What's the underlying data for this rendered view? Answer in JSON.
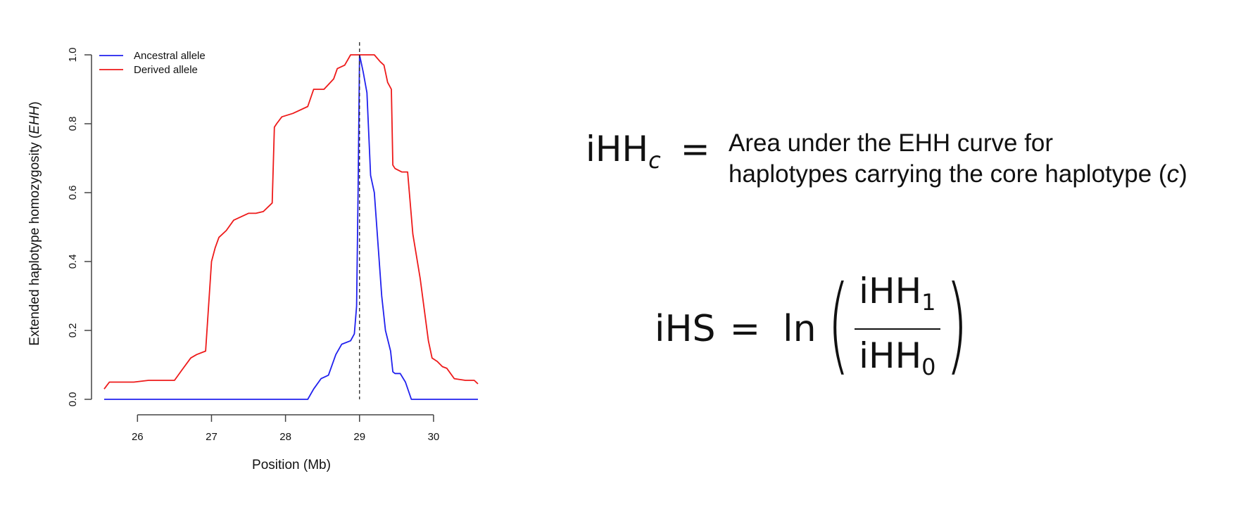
{
  "chart_data": {
    "type": "line",
    "xlabel": "Position (Mb)",
    "ylabel_prefix": "Extended haplotype homozygosity (",
    "ylabel_italic": "EHH",
    "ylabel_suffix": ")",
    "xlim": [
      25.55,
      30.6
    ],
    "ylim": [
      0,
      1
    ],
    "xticks": [
      26,
      27,
      28,
      29,
      30
    ],
    "xtick_labels": [
      "26",
      "27",
      "28",
      "29",
      "30"
    ],
    "yticks": [
      0,
      0.2,
      0.4,
      0.6,
      0.8,
      1.0
    ],
    "ytick_labels": [
      "0.0",
      "0.2",
      "0.4",
      "0.6",
      "0.8",
      "1.0"
    ],
    "vline_x": 29.0,
    "grid": false,
    "legend_position": "top-left",
    "series": [
      {
        "name": "Ancestral allele",
        "color": "#2020ee",
        "x": [
          25.55,
          28.3,
          28.38,
          28.48,
          28.58,
          28.68,
          28.76,
          28.88,
          28.93,
          28.96,
          28.98,
          29.0,
          29.05,
          29.1,
          29.15,
          29.2,
          29.3,
          29.35,
          29.42,
          29.45,
          29.48,
          29.55,
          29.62,
          29.7,
          30.6
        ],
        "y": [
          0,
          0,
          0.03,
          0.06,
          0.07,
          0.13,
          0.16,
          0.17,
          0.19,
          0.27,
          0.6,
          1.0,
          0.95,
          0.89,
          0.65,
          0.6,
          0.3,
          0.2,
          0.14,
          0.08,
          0.075,
          0.075,
          0.05,
          0,
          0
        ]
      },
      {
        "name": "Derived allele",
        "color": "#ee1a1a",
        "x": [
          25.55,
          25.62,
          25.95,
          26.15,
          26.5,
          26.6,
          26.72,
          26.8,
          26.92,
          27.0,
          27.05,
          27.1,
          27.2,
          27.3,
          27.4,
          27.5,
          27.6,
          27.7,
          27.82,
          27.85,
          27.88,
          27.95,
          28.1,
          28.3,
          28.38,
          28.52,
          28.65,
          28.7,
          28.8,
          28.88,
          28.93,
          28.97,
          29.0,
          29.1,
          29.2,
          29.28,
          29.33,
          29.38,
          29.43,
          29.45,
          29.48,
          29.57,
          29.65,
          29.72,
          29.82,
          29.93,
          29.98,
          30.05,
          30.12,
          30.18,
          30.28,
          30.43,
          30.55,
          30.6
        ],
        "y": [
          0.03,
          0.05,
          0.05,
          0.055,
          0.055,
          0.085,
          0.12,
          0.13,
          0.14,
          0.4,
          0.44,
          0.47,
          0.49,
          0.52,
          0.53,
          0.54,
          0.54,
          0.545,
          0.57,
          0.79,
          0.8,
          0.82,
          0.83,
          0.85,
          0.9,
          0.9,
          0.93,
          0.96,
          0.97,
          1.0,
          1.0,
          1.0,
          1.0,
          1.0,
          1.0,
          0.98,
          0.97,
          0.92,
          0.9,
          0.68,
          0.67,
          0.66,
          0.66,
          0.48,
          0.35,
          0.17,
          0.12,
          0.11,
          0.095,
          0.09,
          0.06,
          0.055,
          0.055,
          0.045
        ]
      }
    ]
  },
  "equations": {
    "ihhc": {
      "lhs": "iHH",
      "sub": "c",
      "eq": "="
    },
    "description": {
      "line1": "Area under the EHH curve for",
      "line2_prefix": "haplotypes carrying the core haplotype (",
      "line2_italic": "c",
      "line2_suffix": ")"
    },
    "ihs": {
      "lhs": "iHS",
      "eq": "=",
      "ln": "ln",
      "left_paren": "(",
      "right_paren": ")",
      "num": "iHH",
      "num_sub": "1",
      "den": "iHH",
      "den_sub": "0"
    }
  }
}
